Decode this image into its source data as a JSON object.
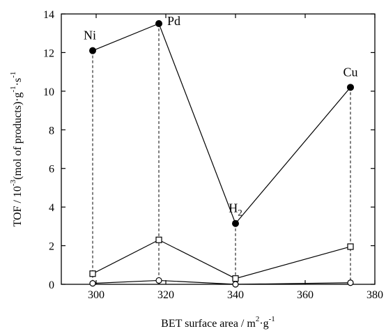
{
  "chart_data": {
    "type": "line",
    "xlabel": {
      "main": "BET surface area / m",
      "sup1": "2",
      "mid": "·g",
      "sup2": "-1"
    },
    "ylabel": {
      "p1": "TOF / 10",
      "sup1": "-3",
      "p2": "(mol of products)·g",
      "sup2": "-1",
      "p3": "·s",
      "sup3": "-1"
    },
    "xlim": [
      290,
      380
    ],
    "ylim": [
      0,
      14
    ],
    "xticks": [
      300,
      320,
      340,
      360,
      380
    ],
    "yticks": [
      0,
      2,
      4,
      6,
      8,
      10,
      12,
      14
    ],
    "series": [
      {
        "marker": "filled-circle",
        "x": [
          299,
          318,
          340,
          373
        ],
        "values": [
          12.1,
          13.5,
          3.15,
          10.2
        ]
      },
      {
        "marker": "open-square",
        "x": [
          299,
          318,
          340,
          373
        ],
        "values": [
          0.55,
          2.3,
          0.3,
          1.95
        ]
      },
      {
        "marker": "open-circle",
        "x": [
          299,
          318,
          340,
          373
        ],
        "values": [
          0.05,
          0.2,
          0.0,
          0.08
        ]
      }
    ],
    "annotations": [
      {
        "text": "Ni",
        "x": 299,
        "y": 12.1,
        "pos": "above-left"
      },
      {
        "text": "Pd",
        "x": 318,
        "y": 13.5,
        "pos": "right"
      },
      {
        "text": "H",
        "sub": "2",
        "x": 340,
        "y": 3.15,
        "pos": "above"
      },
      {
        "text": "Cu",
        "x": 373,
        "y": 10.2,
        "pos": "above"
      }
    ],
    "grid": false,
    "dropLines": true
  }
}
